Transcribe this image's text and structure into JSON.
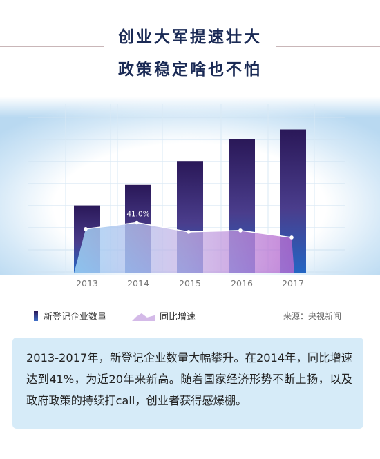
{
  "title": {
    "line1": "创业大军提速壮大",
    "line2": "政策稳定啥也不怕"
  },
  "chart_data": {
    "type": "bar",
    "categories": [
      "2013",
      "2014",
      "2015",
      "2016",
      "2017"
    ],
    "series": [
      {
        "name": "新登记企业数量",
        "type": "bar",
        "values": [
          1132,
          1293,
          1480,
          1651,
          1727
        ]
      },
      {
        "name": "同比增速",
        "type": "line",
        "unit": "%",
        "values": [
          27.6,
          41.0,
          21.6,
          24.5,
          9.9
        ]
      }
    ],
    "data_labels": [
      {
        "series": "同比增速",
        "category": "2014",
        "text": "41.0%"
      }
    ],
    "colors": {
      "bar_top": "#2a1858",
      "bar_bottom": "#2366c4",
      "area": "#b886d6",
      "line": "#ffffff"
    },
    "grid": true,
    "legend_position": "bottom-left"
  },
  "legend": {
    "bar_label": "新登记企业数量",
    "line_label": "同比增速"
  },
  "source": "来源：央视新闻",
  "note": "2013-2017年，新登记企业数量大幅攀升。在2014年，同比增速达到41%，为近20年来新高。随着国家经济形势不断上扬，以及政府政策的持续打call，创业者获得感爆棚。"
}
